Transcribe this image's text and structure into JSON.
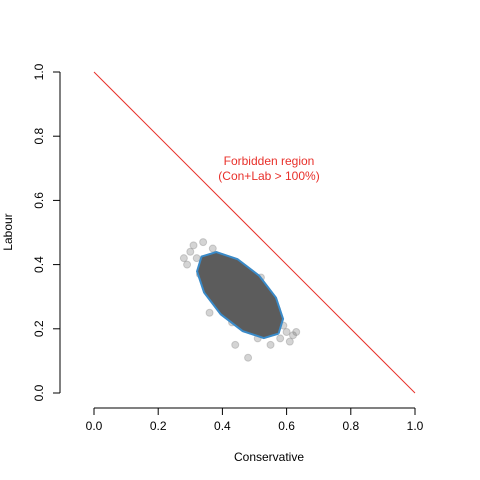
{
  "chart_data": {
    "type": "scatter",
    "xlabel": "Conservative",
    "ylabel": "Labour",
    "annotation": [
      "Forbidden region",
      "(Con+Lab > 100%)"
    ],
    "annotation_color": "#e8302a",
    "xlim": [
      0,
      1
    ],
    "ylim": [
      0,
      1
    ],
    "xticks": [
      {
        "value": 0,
        "label": "0.0"
      },
      {
        "value": 0.2,
        "label": "0.2"
      },
      {
        "value": 0.4,
        "label": "0.4"
      },
      {
        "value": 0.6,
        "label": "0.6"
      },
      {
        "value": 0.8,
        "label": "0.8"
      },
      {
        "value": 1,
        "label": "1.0"
      }
    ],
    "yticks": [
      {
        "value": 0,
        "label": "0.0"
      },
      {
        "value": 0.2,
        "label": "0.2"
      },
      {
        "value": 0.4,
        "label": "0.4"
      },
      {
        "value": 0.6,
        "label": "0.6"
      },
      {
        "value": 0.8,
        "label": "0.8"
      },
      {
        "value": 1,
        "label": "1.0"
      }
    ],
    "series": [
      {
        "type": "scatter",
        "color": "#707070",
        "x": [
          0.3,
          0.32,
          0.34,
          0.36,
          0.38,
          0.4,
          0.42,
          0.44,
          0.46,
          0.48,
          0.5,
          0.52,
          0.54,
          0.56,
          0.58,
          0.6,
          0.62,
          0.35,
          0.37,
          0.39,
          0.41,
          0.43,
          0.45,
          0.47,
          0.49,
          0.51,
          0.53,
          0.55,
          0.57,
          0.59,
          0.29,
          0.33,
          0.31,
          0.61,
          0.63,
          0.28,
          0.36,
          0.52,
          0.44,
          0.48
        ],
        "values": [
          0.44,
          0.42,
          0.47,
          0.4,
          0.43,
          0.38,
          0.36,
          0.33,
          0.3,
          0.28,
          0.27,
          0.24,
          0.22,
          0.2,
          0.17,
          0.19,
          0.18,
          0.34,
          0.45,
          0.28,
          0.41,
          0.22,
          0.39,
          0.2,
          0.34,
          0.17,
          0.3,
          0.15,
          0.26,
          0.21,
          0.4,
          0.37,
          0.46,
          0.16,
          0.19,
          0.42,
          0.25,
          0.36,
          0.15,
          0.11
        ]
      },
      {
        "type": "line",
        "color": "#e8302a",
        "x": [
          0,
          1
        ],
        "values": [
          1,
          0
        ]
      },
      {
        "type": "line",
        "color": "#3a8ac8",
        "fill": "#5c5c5c",
        "x": [
          0.575,
          0.529,
          0.463,
          0.395,
          0.343,
          0.321,
          0.335,
          0.381,
          0.447,
          0.515,
          0.567,
          0.589,
          0.575
        ],
        "values": [
          0.185,
          0.171,
          0.193,
          0.245,
          0.313,
          0.379,
          0.425,
          0.439,
          0.417,
          0.365,
          0.297,
          0.231,
          0.185
        ]
      }
    ]
  }
}
